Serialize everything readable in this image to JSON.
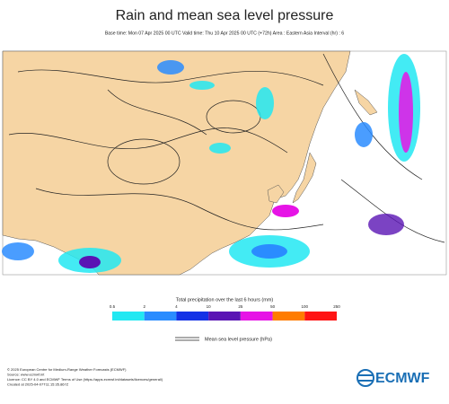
{
  "header": {
    "title": "Rain and mean sea level pressure",
    "subtitle": "Base time: Mon 07 Apr 2025 00 UTC Valid time: Thu 10 Apr 2025 00 UTC (+72h) Area : Eastern Asia Interval (hr) : 6"
  },
  "legend": {
    "title": "Total precipitation over the last 6 hours (mm)",
    "ticks": [
      "0.5",
      "2",
      "4",
      "10",
      "25",
      "50",
      "100",
      "250"
    ],
    "colors": [
      "#22e8f2",
      "#2a8cff",
      "#1432e6",
      "#5a14b4",
      "#e614e6",
      "#ff7c00",
      "#ff1414"
    ],
    "isobar_label": "Mean sea level pressure (hPa)"
  },
  "footer": {
    "lines": [
      "© 2025 European Centre for Medium-Range Weather Forecasts (ECMWF)",
      "Source: www.ecmwf.int",
      "Licence: CC BY 4.0 and ECMWF Terms of Use (https://apps.ecmwf.int/datasets/licences/general/)",
      "Created at 2025-04-07T11:15:35.867Z"
    ],
    "logo": "ECMWF"
  }
}
